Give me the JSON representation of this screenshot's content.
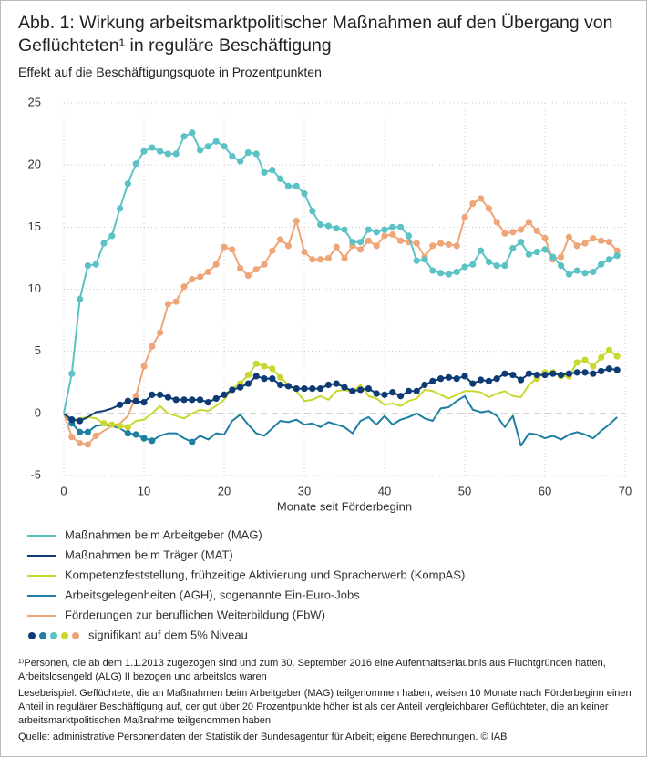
{
  "chart_data": {
    "type": "line",
    "title": "Abb. 1: Wirkung arbeitsmarktpolitischer Maßnahmen auf den Übergang von Geflüchteten¹ in reguläre Beschäftigung",
    "subtitle": "Effekt auf die Beschäftigungsquote in Prozentpunkten",
    "x_label": "Monate seit Förderbeginn",
    "x": [
      0,
      1,
      2,
      3,
      4,
      5,
      6,
      7,
      8,
      9,
      10,
      11,
      12,
      13,
      14,
      15,
      16,
      17,
      18,
      19,
      20,
      21,
      22,
      23,
      24,
      25,
      26,
      27,
      28,
      29,
      30,
      31,
      32,
      33,
      34,
      35,
      36,
      37,
      38,
      39,
      40,
      41,
      42,
      43,
      44,
      45,
      46,
      47,
      48,
      49,
      50,
      51,
      52,
      53,
      54,
      55,
      56,
      57,
      58,
      59,
      60,
      61,
      62,
      63,
      64,
      65,
      66,
      67,
      68,
      69
    ],
    "xlim": [
      0,
      70
    ],
    "xticks": [
      0,
      10,
      20,
      30,
      40,
      50,
      60,
      70
    ],
    "ylim": [
      -5,
      25
    ],
    "yticks": [
      -5,
      0,
      5,
      10,
      15,
      20,
      25
    ],
    "grid": true,
    "series": [
      {
        "name": "Maßnahmen beim Arbeitgeber (MAG)",
        "color": "#5bc2c6",
        "values": [
          0,
          3.2,
          9.2,
          11.9,
          12,
          13.7,
          14.3,
          16.5,
          18.5,
          20.1,
          21.1,
          21.4,
          21.1,
          20.9,
          20.9,
          22.3,
          22.6,
          21.2,
          21.5,
          21.9,
          21.5,
          20.7,
          20.3,
          21,
          20.9,
          19.4,
          19.6,
          18.9,
          18.3,
          18.3,
          17.7,
          16.3,
          15.2,
          15.1,
          14.9,
          14.8,
          13.8,
          13.8,
          14.8,
          14.6,
          14.8,
          15,
          15,
          14.3,
          12.3,
          12.4,
          11.5,
          11.3,
          11.2,
          11.4,
          11.8,
          12,
          13.1,
          12.2,
          11.9,
          11.9,
          13.3,
          13.8,
          12.8,
          13,
          13.2,
          12.6,
          11.9,
          11.2,
          11.5,
          11.3,
          11.4,
          12,
          12.4,
          12.7
        ],
        "significant": [
          false,
          true,
          true,
          true,
          true,
          true,
          true,
          true,
          true,
          true,
          true,
          true,
          true,
          true,
          true,
          true,
          true,
          true,
          true,
          true,
          true,
          true,
          true,
          true,
          true,
          true,
          true,
          true,
          true,
          true,
          true,
          true,
          true,
          true,
          true,
          true,
          true,
          true,
          true,
          true,
          true,
          true,
          true,
          true,
          true,
          true,
          true,
          true,
          true,
          true,
          true,
          true,
          true,
          true,
          true,
          true,
          true,
          true,
          true,
          true,
          true,
          true,
          true,
          true,
          true,
          true,
          true,
          true,
          true,
          true
        ]
      },
      {
        "name": "Maßnahmen beim Träger (MAT)",
        "color": "#0f3b75",
        "values": [
          0,
          -0.5,
          -0.6,
          -0.3,
          0.1,
          0.2,
          0.4,
          0.7,
          1,
          1,
          0.9,
          1.5,
          1.5,
          1.3,
          1.1,
          1.1,
          1.1,
          1.1,
          0.9,
          1.2,
          1.5,
          1.9,
          2.1,
          2.4,
          3,
          2.8,
          2.8,
          2.3,
          2.2,
          2,
          2,
          2,
          2,
          2.3,
          2.4,
          2.1,
          1.8,
          1.9,
          2,
          1.6,
          1.5,
          1.7,
          1.4,
          1.8,
          1.8,
          2.3,
          2.6,
          2.8,
          2.9,
          2.8,
          3,
          2.4,
          2.7,
          2.6,
          2.8,
          3.2,
          3.1,
          2.7,
          3.2,
          3.1,
          3.1,
          3.2,
          3.1,
          3.2,
          3.3,
          3.3,
          3.2,
          3.4,
          3.6,
          3.5
        ],
        "significant": [
          false,
          true,
          true,
          false,
          false,
          false,
          false,
          true,
          true,
          true,
          true,
          true,
          true,
          true,
          true,
          true,
          true,
          true,
          true,
          true,
          true,
          true,
          true,
          true,
          true,
          true,
          true,
          true,
          true,
          true,
          true,
          true,
          true,
          true,
          true,
          true,
          true,
          true,
          true,
          true,
          true,
          true,
          true,
          true,
          true,
          true,
          true,
          true,
          true,
          true,
          true,
          true,
          true,
          true,
          true,
          true,
          true,
          true,
          true,
          true,
          true,
          true,
          true,
          true,
          true,
          true,
          true,
          true,
          true,
          true
        ]
      },
      {
        "name": "Kompetenzfeststellung, frühzeitige Aktivierung und Spracherwerb (KompAS)",
        "color": "#c9d830",
        "values": [
          0,
          -0.6,
          -0.4,
          -0.3,
          -0.4,
          -0.8,
          -0.9,
          -1,
          -1.1,
          -0.6,
          -0.5,
          0,
          0.6,
          0,
          -0.2,
          -0.4,
          0,
          0.3,
          0.2,
          0.6,
          1.1,
          2,
          2.4,
          3.1,
          4,
          3.8,
          3.6,
          2.9,
          2.3,
          1.8,
          1,
          1.1,
          1.4,
          1.1,
          1.8,
          1.9,
          1.7,
          2.3,
          1.4,
          1.2,
          0.7,
          0.8,
          0.6,
          1,
          1.2,
          1.9,
          1.8,
          1.5,
          1.2,
          1.5,
          1.8,
          1.8,
          1.7,
          1.3,
          1.6,
          1.8,
          1.4,
          1.3,
          2.3,
          2.8,
          3.3,
          3.3,
          3,
          3,
          4.1,
          4.3,
          3.8,
          4.5,
          5.1,
          4.6
        ],
        "significant": [
          false,
          false,
          false,
          false,
          false,
          true,
          true,
          true,
          true,
          false,
          false,
          false,
          false,
          false,
          false,
          false,
          false,
          false,
          false,
          false,
          false,
          false,
          true,
          true,
          true,
          true,
          true,
          true,
          false,
          false,
          false,
          false,
          false,
          false,
          false,
          false,
          false,
          false,
          false,
          false,
          false,
          false,
          false,
          false,
          false,
          false,
          false,
          false,
          false,
          false,
          false,
          false,
          false,
          false,
          false,
          false,
          false,
          false,
          false,
          true,
          true,
          true,
          true,
          true,
          true,
          true,
          true,
          true,
          true,
          true
        ]
      },
      {
        "name": "Arbeitsgelegenheiten (AGH), sogenannte Ein-Euro-Jobs",
        "color": "#1e7fa3",
        "values": [
          0,
          -0.8,
          -1.5,
          -1.5,
          -1,
          -0.9,
          -1,
          -1.2,
          -1.6,
          -1.7,
          -2,
          -2.2,
          -1.8,
          -1.6,
          -1.6,
          -2,
          -2.3,
          -1.8,
          -2.1,
          -1.6,
          -1.7,
          -0.6,
          -0.1,
          -0.9,
          -1.6,
          -1.8,
          -1.2,
          -0.6,
          -0.7,
          -0.5,
          -0.9,
          -0.8,
          -1.1,
          -0.7,
          -0.9,
          -1.1,
          -1.6,
          -0.6,
          -0.3,
          -0.9,
          -0.2,
          -0.9,
          -0.5,
          -0.3,
          0,
          -0.4,
          -0.6,
          0.4,
          0.5,
          1,
          1.4,
          0.3,
          0.1,
          0.2,
          -0.2,
          -1.1,
          -0.2,
          -2.6,
          -1.6,
          -1.7,
          -2,
          -1.8,
          -2.1,
          -1.7,
          -1.5,
          -1.7,
          -2,
          -1.4,
          -0.9,
          -0.3
        ],
        "significant": [
          false,
          true,
          true,
          true,
          false,
          false,
          false,
          false,
          true,
          true,
          true,
          true,
          false,
          false,
          false,
          false,
          true,
          false,
          false,
          false,
          false,
          false,
          false,
          false,
          false,
          false,
          false,
          false,
          false,
          false,
          false,
          false,
          false,
          false,
          false,
          false,
          false,
          false,
          false,
          false,
          false,
          false,
          false,
          false,
          false,
          false,
          false,
          false,
          false,
          false,
          false,
          false,
          false,
          false,
          false,
          false,
          false,
          false,
          false,
          false,
          false,
          false,
          false,
          false,
          false,
          false,
          false,
          false,
          false,
          false
        ]
      },
      {
        "name": "Förderungen zur beruflichen Weiterbildung (FbW)",
        "color": "#eea679",
        "values": [
          0,
          -1.9,
          -2.4,
          -2.5,
          -1.8,
          -1.4,
          -1,
          -0.8,
          -0.2,
          1.4,
          3.8,
          5.4,
          6.5,
          8.8,
          9,
          10.2,
          10.8,
          11,
          11.4,
          12,
          13.4,
          13.2,
          11.7,
          11.1,
          11.6,
          12,
          13.1,
          14,
          13.5,
          15.5,
          13,
          12.4,
          12.4,
          12.5,
          13.4,
          12.5,
          13.5,
          13.2,
          13.9,
          13.5,
          14.3,
          14.4,
          13.9,
          13.8,
          13.7,
          12.6,
          13.5,
          13.7,
          13.6,
          13.5,
          15.8,
          16.9,
          17.3,
          16.5,
          15.4,
          14.5,
          14.6,
          14.8,
          15.4,
          14.7,
          14.1,
          12.4,
          12.6,
          14.2,
          13.5,
          13.7,
          14.1,
          13.9,
          13.8,
          13.1
        ],
        "significant": [
          false,
          true,
          true,
          true,
          true,
          false,
          false,
          false,
          false,
          true,
          true,
          true,
          true,
          true,
          true,
          true,
          true,
          true,
          true,
          true,
          true,
          true,
          true,
          true,
          true,
          true,
          true,
          true,
          true,
          true,
          true,
          true,
          true,
          true,
          true,
          true,
          true,
          true,
          true,
          true,
          true,
          true,
          true,
          true,
          true,
          true,
          true,
          true,
          true,
          true,
          true,
          true,
          true,
          true,
          true,
          true,
          true,
          true,
          true,
          true,
          true,
          true,
          true,
          true,
          true,
          true,
          true,
          true,
          true,
          true
        ]
      }
    ],
    "significance_label": "signifikant auf dem 5% Niveau",
    "footnotes": [
      "¹⁾Personen, die ab dem 1.1.2013 zugezogen sind und zum 30. September 2016 eine Aufenthaltserlaubnis aus Fluchtgründen hatten, Arbeitslosengeld (ALG) II bezogen und arbeitslos waren",
      "Lesebeispiel: Geflüchtete, die an Maßnahmen beim Arbeitgeber (MAG) teilgenommen haben, weisen 10 Monate nach Förderbeginn einen Anteil in regulärer Beschäftigung auf, der gut über 20 Prozentpunkte höher ist als der Anteil vergleichbarer Geflüchteter, die an keiner arbeitsmarktpolitischen Maßnahme teilgenommen haben.",
      "Quelle: administrative Personendaten der Statistik der Bundesagentur für Arbeit; eigene Berechnungen. © IAB"
    ]
  }
}
